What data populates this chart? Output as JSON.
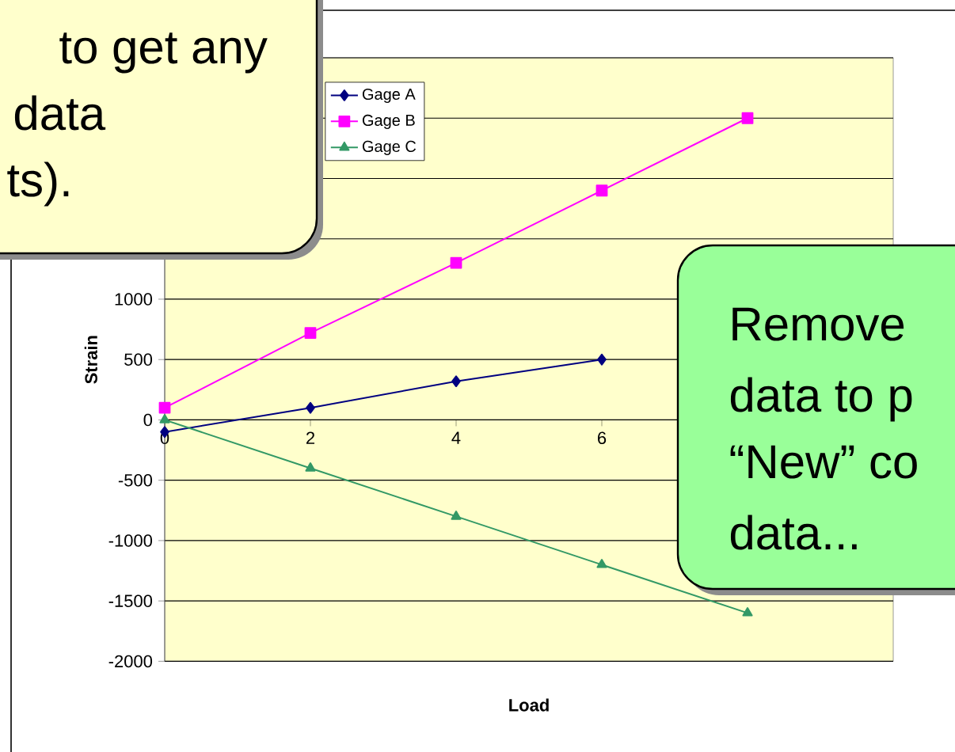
{
  "chart_data": {
    "type": "line",
    "xlabel": "Load",
    "ylabel": "Strain",
    "x": [
      0,
      2,
      4,
      6,
      8
    ],
    "xlim": [
      0,
      10
    ],
    "xticks": [
      0,
      2,
      4,
      6
    ],
    "ylim": [
      -2000,
      3000
    ],
    "yticks": [
      -2000,
      -1500,
      -1000,
      -500,
      0,
      500,
      1000,
      {
        "value": 1500,
        "label": null
      },
      {
        "value": 2000,
        "label": null
      },
      {
        "value": 2500,
        "label": null
      },
      {
        "value": 3000,
        "label": null
      }
    ],
    "grid": "y",
    "legend": "top left",
    "series": [
      {
        "name": "Gage A",
        "color": "#000080",
        "marker": "diamond",
        "values": [
          -100,
          100,
          320,
          500,
          null
        ]
      },
      {
        "name": "Gage B",
        "color": "#ff00ff",
        "marker": "square",
        "values": [
          100,
          720,
          1300,
          1900,
          2500
        ]
      },
      {
        "name": "Gage C",
        "color": "#339966",
        "marker": "triangle",
        "values": [
          0,
          -400,
          -800,
          -1200,
          -1600
        ]
      }
    ],
    "annotations": [
      "to get any",
      "data",
      "ts).",
      "Remove",
      "data to p",
      "“New” co",
      "data..."
    ]
  }
}
